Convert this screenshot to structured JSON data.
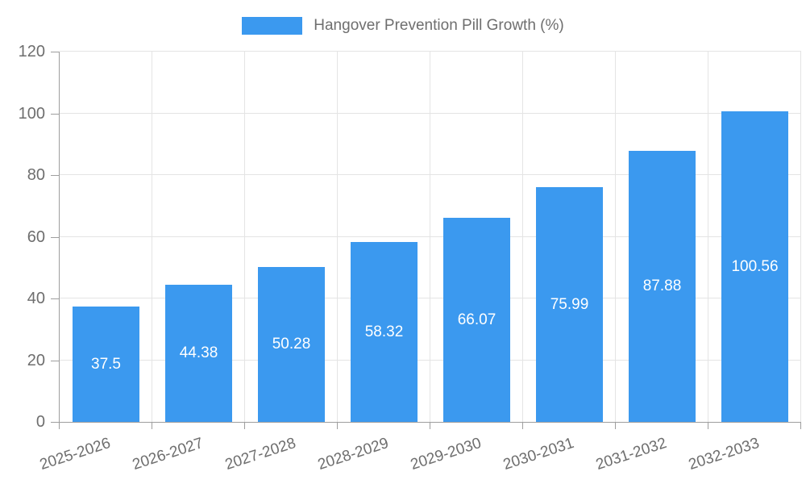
{
  "chart_data": {
    "type": "bar",
    "title": "Hangover Prevention Pill Growth (%)",
    "legend_position": "top-center",
    "categories": [
      "2025-2026",
      "2026-2027",
      "2027-2028",
      "2028-2029",
      "2029-2030",
      "2030-2031",
      "2031-2032",
      "2032-2033"
    ],
    "series": [
      {
        "name": "Hangover Prevention Pill Growth (%)",
        "values": [
          37.5,
          44.38,
          50.28,
          58.32,
          66.07,
          75.99,
          87.88,
          100.56
        ]
      }
    ],
    "values": [
      37.5,
      44.38,
      50.28,
      58.32,
      66.07,
      75.99,
      87.88,
      100.56
    ],
    "value_labels": [
      "37.5",
      "44.38",
      "50.28",
      "58.32",
      "66.07",
      "75.99",
      "87.88",
      "100.56"
    ],
    "xlabel": "",
    "ylabel": "",
    "ylim": [
      0,
      120
    ],
    "y_ticks": [
      0,
      20,
      40,
      60,
      80,
      100,
      120
    ],
    "grid": true,
    "x_label_rotation_deg": -18,
    "colors": {
      "bar": "#3B99EF",
      "grid_line": "#E4E4E4",
      "axis_line": "#9E9E9E",
      "tick_text": "#6E6E6E",
      "legend_text": "#6E6E6E",
      "value_text": "#FFFFFF",
      "background": "#FFFFFF"
    }
  }
}
